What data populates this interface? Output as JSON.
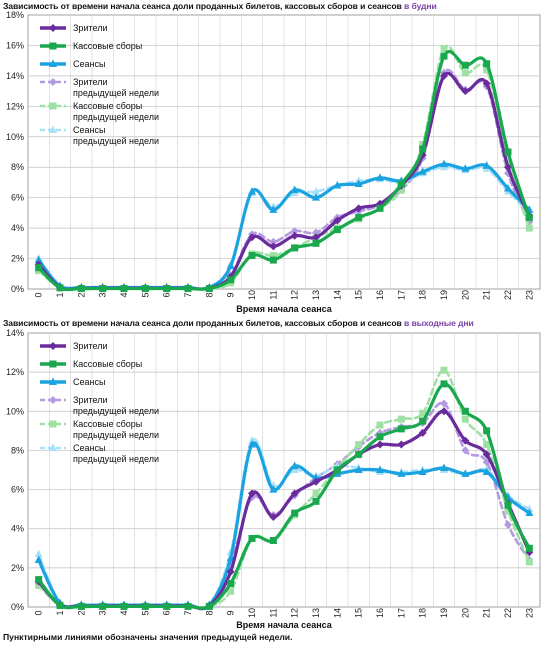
{
  "chart_data": [
    {
      "type": "line",
      "title_main": "Зависимость от времени начала сеанса доли проданных билетов, кассовых сборов и сеансов",
      "title_highlight": "в будни",
      "xlabel": "Время начала сеанса",
      "ylabel": "",
      "ylim": [
        0,
        18
      ],
      "yticks": [
        "0%",
        "2%",
        "4%",
        "6%",
        "8%",
        "10%",
        "12%",
        "14%",
        "16%",
        "18%"
      ],
      "categories": [
        "0",
        "1",
        "2",
        "3",
        "4",
        "5",
        "6",
        "7",
        "8",
        "9",
        "10",
        "11",
        "12",
        "13",
        "14",
        "15",
        "16",
        "17",
        "18",
        "19",
        "20",
        "21",
        "22",
        "23"
      ],
      "grid": true,
      "legend_position": "top-left",
      "series": [
        {
          "name": "Зрители",
          "color": "#6a2c9c",
          "style": "solid",
          "marker": "diamond",
          "values": [
            1.6,
            0.1,
            0.05,
            0.05,
            0.05,
            0.05,
            0.05,
            0.05,
            0.05,
            0.8,
            3.4,
            2.8,
            3.5,
            3.4,
            4.5,
            5.3,
            5.6,
            6.8,
            8.8,
            14.0,
            13.0,
            13.5,
            8.0,
            4.8
          ]
        },
        {
          "name": "Кассовые сборы",
          "color": "#1aa84f",
          "style": "solid",
          "marker": "square",
          "values": [
            1.4,
            0.08,
            0.03,
            0.03,
            0.03,
            0.03,
            0.03,
            0.03,
            0.03,
            0.6,
            2.2,
            1.9,
            2.7,
            3.0,
            3.9,
            4.7,
            5.3,
            6.9,
            9.2,
            15.3,
            14.7,
            14.8,
            9.0,
            4.7
          ]
        },
        {
          "name": "Сеансы",
          "color": "#1aa3e0",
          "style": "solid",
          "marker": "triangle",
          "values": [
            1.9,
            0.2,
            0.1,
            0.1,
            0.1,
            0.1,
            0.1,
            0.1,
            0.1,
            1.5,
            6.4,
            5.2,
            6.5,
            6.0,
            6.8,
            6.9,
            7.3,
            7.1,
            7.7,
            8.2,
            7.9,
            8.1,
            6.6,
            5.2
          ]
        },
        {
          "name": "Зрители предыдущей недели",
          "color": "#b49adf",
          "style": "dashed",
          "marker": "diamond",
          "values": [
            1.5,
            0.1,
            0.05,
            0.05,
            0.05,
            0.05,
            0.05,
            0.05,
            0.05,
            0.9,
            3.6,
            3.1,
            3.8,
            3.7,
            4.7,
            5.1,
            5.5,
            6.5,
            8.6,
            14.2,
            13.1,
            13.3,
            7.6,
            4.4
          ]
        },
        {
          "name": "Кассовые сборы предыдущей недели",
          "color": "#9fe0a5",
          "style": "dashed",
          "marker": "square",
          "values": [
            1.2,
            0.08,
            0.03,
            0.03,
            0.03,
            0.03,
            0.03,
            0.03,
            0.03,
            0.4,
            2.3,
            2.2,
            2.7,
            3.4,
            4.0,
            4.6,
            5.3,
            6.5,
            9.5,
            15.8,
            14.2,
            14.4,
            8.3,
            4.0
          ]
        },
        {
          "name": "Сеансы предыдущей недели",
          "color": "#a8e1f7",
          "style": "dashed",
          "marker": "triangle",
          "values": [
            2.0,
            0.2,
            0.1,
            0.1,
            0.1,
            0.1,
            0.1,
            0.1,
            0.1,
            1.6,
            6.3,
            5.4,
            6.3,
            6.4,
            6.8,
            7.1,
            7.2,
            7.0,
            7.6,
            8.0,
            7.8,
            7.9,
            6.4,
            5.0
          ]
        }
      ],
      "legend": [
        [
          "Зрители"
        ],
        [
          "Кассовые сборы"
        ],
        [
          "Сеансы"
        ],
        [
          "Зрители",
          "предыдущей недели"
        ],
        [
          "Кассовые сборы",
          "предыдущей недели"
        ],
        [
          "Сеансы",
          "предыдущей недели"
        ]
      ]
    },
    {
      "type": "line",
      "title_main": "Зависимость от времени начала сеанса доли проданных билетов, кассовых сборов и сеансов",
      "title_highlight": "в выходные дни",
      "xlabel": "Время начала сеанса",
      "ylabel": "",
      "ylim": [
        0,
        14
      ],
      "yticks": [
        "0%",
        "2%",
        "4%",
        "6%",
        "8%",
        "10%",
        "12%",
        "14%"
      ],
      "categories": [
        "0",
        "1",
        "2",
        "3",
        "4",
        "5",
        "6",
        "7",
        "8",
        "9",
        "10",
        "11",
        "12",
        "13",
        "14",
        "15",
        "16",
        "17",
        "18",
        "19",
        "20",
        "21",
        "22",
        "23"
      ],
      "grid": true,
      "legend_position": "top-left",
      "series": [
        {
          "name": "Зрители",
          "color": "#6a2c9c",
          "style": "solid",
          "marker": "diamond",
          "values": [
            1.3,
            0.1,
            0.05,
            0.05,
            0.05,
            0.05,
            0.05,
            0.05,
            0.05,
            1.8,
            5.8,
            4.6,
            5.8,
            6.4,
            7.0,
            7.8,
            8.3,
            8.3,
            8.9,
            10.0,
            8.5,
            7.8,
            5.3,
            2.8
          ]
        },
        {
          "name": "Кассовые сборы",
          "color": "#1aa84f",
          "style": "solid",
          "marker": "square",
          "values": [
            1.4,
            0.08,
            0.03,
            0.03,
            0.03,
            0.03,
            0.03,
            0.03,
            0.03,
            1.2,
            3.5,
            3.4,
            4.8,
            5.4,
            7.0,
            7.8,
            8.7,
            9.1,
            9.5,
            11.4,
            10.0,
            9.0,
            5.2,
            3.0
          ]
        },
        {
          "name": "Сеансы",
          "color": "#1aa3e0",
          "style": "solid",
          "marker": "triangle",
          "values": [
            2.4,
            0.2,
            0.1,
            0.1,
            0.1,
            0.1,
            0.1,
            0.1,
            0.1,
            2.5,
            8.3,
            6.0,
            7.2,
            6.6,
            6.8,
            7.0,
            7.0,
            6.8,
            6.9,
            7.1,
            6.8,
            6.9,
            5.6,
            4.8
          ]
        },
        {
          "name": "Зрители предыдущей недели",
          "color": "#b49adf",
          "style": "dashed",
          "marker": "diamond",
          "values": [
            1.2,
            0.1,
            0.05,
            0.05,
            0.05,
            0.05,
            0.05,
            0.05,
            0.05,
            2.2,
            5.6,
            4.7,
            5.7,
            6.6,
            7.3,
            8.2,
            8.9,
            9.2,
            9.4,
            10.4,
            8.0,
            7.4,
            4.2,
            2.4
          ]
        },
        {
          "name": "Кассовые сборы предыдущей недели",
          "color": "#9fe0a5",
          "style": "dashed",
          "marker": "square",
          "values": [
            1.1,
            0.08,
            0.03,
            0.03,
            0.03,
            0.03,
            0.03,
            0.03,
            0.03,
            0.8,
            3.5,
            3.4,
            4.7,
            5.8,
            7.1,
            8.3,
            9.3,
            9.6,
            9.9,
            12.1,
            9.6,
            8.3,
            4.9,
            2.3
          ]
        },
        {
          "name": "Сеансы предыдущей недели",
          "color": "#a8e1f7",
          "style": "dashed",
          "marker": "triangle",
          "values": [
            2.7,
            0.2,
            0.1,
            0.1,
            0.1,
            0.1,
            0.1,
            0.1,
            0.1,
            2.8,
            8.5,
            6.2,
            7.0,
            6.7,
            7.2,
            7.1,
            6.9,
            6.9,
            7.0,
            7.0,
            6.8,
            7.0,
            5.7,
            5.0
          ]
        }
      ],
      "legend": [
        [
          "Зрители"
        ],
        [
          "Кассовые сборы"
        ],
        [
          "Сеансы"
        ],
        [
          "Зрители",
          "предыдущей недели"
        ],
        [
          "Кассовые сборы",
          "предыдущей недели"
        ],
        [
          "Сеансы",
          "предыдущей недели"
        ]
      ]
    }
  ],
  "footnote": "Пунктирными линиями обозначены значения предыдущей недели."
}
